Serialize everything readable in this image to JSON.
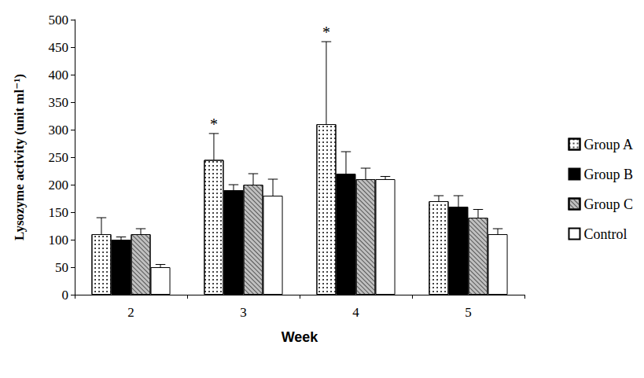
{
  "chart_data": {
    "type": "bar",
    "y_label": "Lysozyme activity (unit ml⁻¹)",
    "x_label": "Week",
    "categories": [
      "2",
      "3",
      "4",
      "5"
    ],
    "series": [
      {
        "name": "Group A",
        "color": "#ffffff",
        "values": [
          110,
          245,
          310,
          170
        ],
        "errors": [
          30,
          48,
          150,
          10
        ]
      },
      {
        "name": "Group B",
        "color": "#000000",
        "values": [
          100,
          190,
          220,
          160
        ],
        "errors": [
          5,
          10,
          40,
          20
        ]
      },
      {
        "name": "Group C",
        "color": "#c0c0c0",
        "values": [
          110,
          200,
          210,
          140
        ],
        "errors": [
          10,
          20,
          20,
          15
        ]
      },
      {
        "name": "Control",
        "color": "#ffffff",
        "values": [
          50,
          180,
          210,
          110
        ],
        "errors": [
          5,
          30,
          5,
          10
        ]
      }
    ],
    "ylim": [
      0,
      500
    ],
    "yticks": [
      0,
      50,
      100,
      150,
      200,
      250,
      300,
      350,
      400,
      450,
      500
    ],
    "grid": false,
    "legend": "right",
    "annotations": [
      {
        "text": "*",
        "category": "3",
        "series": "Group A"
      },
      {
        "text": "*",
        "category": "4",
        "series": "Group A"
      }
    ]
  }
}
